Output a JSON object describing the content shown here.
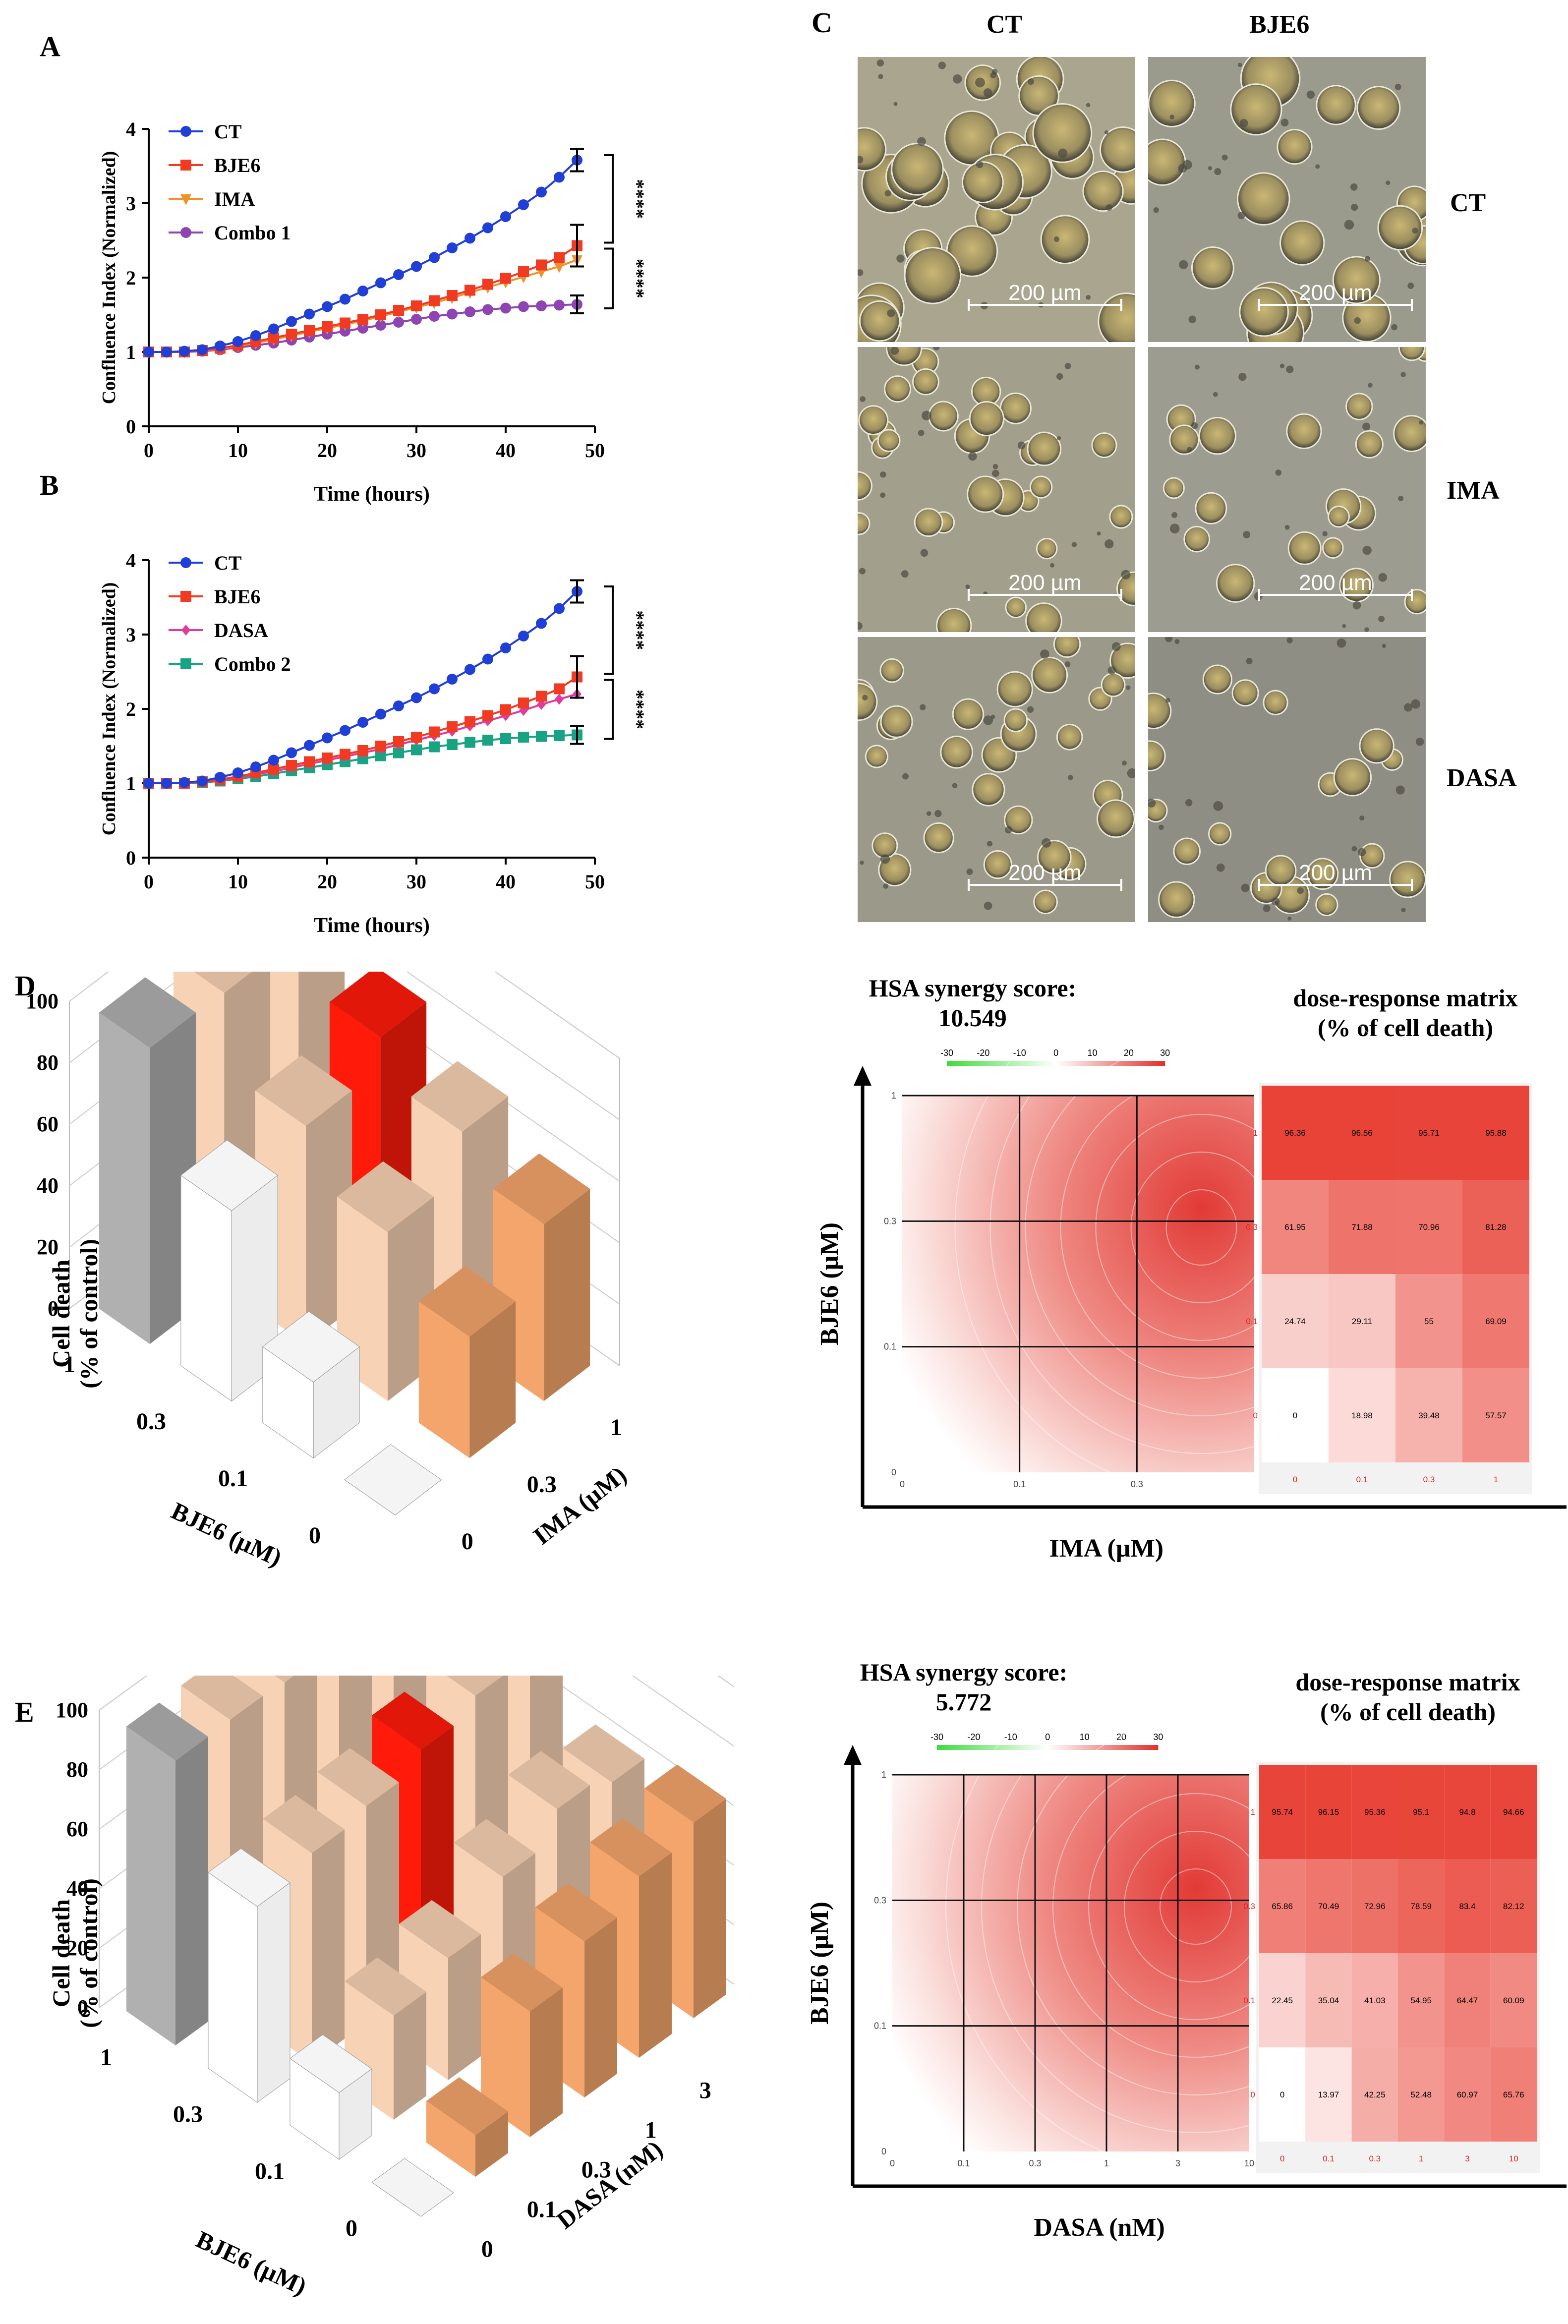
{
  "panels": {
    "A": "A",
    "B": "B",
    "C": "C",
    "D": "D",
    "E": "E"
  },
  "micro": {
    "col_labels": [
      "CT",
      "BJE6"
    ],
    "row_labels": [
      "CT",
      "IMA",
      "DASA"
    ],
    "scale_bar": "200 µm",
    "colors": [
      "#a9a58e",
      "#9a9b8c",
      "#a29f8c",
      "#9d9c90",
      "#9b9a8a",
      "#8f8e84"
    ]
  },
  "chart_data": [
    {
      "id": "A",
      "type": "line",
      "ylabel": "Confluence Index (Normalized)",
      "xlabel": "Time (hours)",
      "xlim": [
        0,
        50
      ],
      "ylim": [
        0,
        4
      ],
      "xticks": [
        0,
        10,
        20,
        30,
        40,
        50
      ],
      "yticks": [
        0,
        1,
        2,
        3,
        4
      ],
      "x": [
        0,
        2,
        4,
        6,
        8,
        10,
        12,
        14,
        16,
        18,
        20,
        22,
        24,
        26,
        28,
        30,
        32,
        34,
        36,
        38,
        40,
        42,
        44,
        46,
        48
      ],
      "series": [
        {
          "name": "CT",
          "color": "#1f3fd6",
          "marker": "circle",
          "endpoint_error": 0.15,
          "values": [
            1.0,
            1.0,
            1.01,
            1.03,
            1.08,
            1.14,
            1.22,
            1.31,
            1.41,
            1.51,
            1.61,
            1.71,
            1.82,
            1.93,
            2.04,
            2.15,
            2.27,
            2.4,
            2.53,
            2.67,
            2.82,
            2.98,
            3.15,
            3.35,
            3.58
          ]
        },
        {
          "name": "BJE6",
          "color": "#f03a22",
          "marker": "square",
          "endpoint_error": 0.28,
          "values": [
            1.0,
            1.0,
            1.0,
            1.02,
            1.05,
            1.09,
            1.14,
            1.19,
            1.24,
            1.29,
            1.34,
            1.39,
            1.44,
            1.5,
            1.56,
            1.62,
            1.69,
            1.76,
            1.83,
            1.91,
            1.99,
            2.08,
            2.17,
            2.27,
            2.43
          ]
        },
        {
          "name": "IMA",
          "color": "#f0922a",
          "marker": "triangle-down",
          "values": [
            1.0,
            1.0,
            1.0,
            1.02,
            1.04,
            1.08,
            1.12,
            1.17,
            1.22,
            1.27,
            1.32,
            1.37,
            1.42,
            1.48,
            1.54,
            1.6,
            1.66,
            1.73,
            1.8,
            1.87,
            1.94,
            2.01,
            2.08,
            2.15,
            2.24
          ]
        },
        {
          "name": "Combo 1",
          "color": "#8e44b2",
          "marker": "circle",
          "endpoint_error": 0.12,
          "values": [
            1.0,
            1.0,
            1.0,
            1.01,
            1.03,
            1.06,
            1.09,
            1.12,
            1.16,
            1.2,
            1.24,
            1.28,
            1.32,
            1.36,
            1.4,
            1.44,
            1.48,
            1.51,
            1.54,
            1.57,
            1.59,
            1.61,
            1.62,
            1.63,
            1.64
          ]
        }
      ],
      "significance": [
        "****",
        "****"
      ]
    },
    {
      "id": "B",
      "type": "line",
      "ylabel": "Confluence Index (Normalized)",
      "xlabel": "Time (hours)",
      "xlim": [
        0,
        50
      ],
      "ylim": [
        0,
        4
      ],
      "xticks": [
        0,
        10,
        20,
        30,
        40,
        50
      ],
      "yticks": [
        0,
        1,
        2,
        3,
        4
      ],
      "x": [
        0,
        2,
        4,
        6,
        8,
        10,
        12,
        14,
        16,
        18,
        20,
        22,
        24,
        26,
        28,
        30,
        32,
        34,
        36,
        38,
        40,
        42,
        44,
        46,
        48
      ],
      "series": [
        {
          "name": "CT",
          "color": "#1f3fd6",
          "marker": "circle",
          "endpoint_error": 0.15,
          "values": [
            1.0,
            1.0,
            1.01,
            1.03,
            1.08,
            1.14,
            1.22,
            1.31,
            1.41,
            1.51,
            1.61,
            1.71,
            1.82,
            1.93,
            2.04,
            2.15,
            2.27,
            2.4,
            2.53,
            2.67,
            2.82,
            2.98,
            3.15,
            3.35,
            3.58
          ]
        },
        {
          "name": "BJE6",
          "color": "#f03a22",
          "marker": "square",
          "endpoint_error": 0.28,
          "values": [
            1.0,
            1.0,
            1.0,
            1.02,
            1.05,
            1.09,
            1.14,
            1.19,
            1.24,
            1.29,
            1.34,
            1.39,
            1.44,
            1.5,
            1.56,
            1.62,
            1.69,
            1.76,
            1.83,
            1.91,
            1.99,
            2.08,
            2.17,
            2.27,
            2.43
          ]
        },
        {
          "name": "DASA",
          "color": "#e03a9c",
          "marker": "diamond",
          "values": [
            1.0,
            1.0,
            1.0,
            1.02,
            1.04,
            1.08,
            1.12,
            1.16,
            1.21,
            1.26,
            1.31,
            1.36,
            1.41,
            1.46,
            1.52,
            1.58,
            1.64,
            1.7,
            1.77,
            1.84,
            1.91,
            1.98,
            2.06,
            2.13,
            2.2
          ]
        },
        {
          "name": "Combo 2",
          "color": "#18a383",
          "marker": "square",
          "endpoint_error": 0.12,
          "values": [
            1.0,
            1.0,
            1.0,
            1.01,
            1.03,
            1.06,
            1.09,
            1.13,
            1.17,
            1.21,
            1.25,
            1.29,
            1.33,
            1.37,
            1.41,
            1.45,
            1.49,
            1.52,
            1.55,
            1.58,
            1.6,
            1.62,
            1.63,
            1.64,
            1.65
          ]
        }
      ],
      "significance": [
        "****",
        "****"
      ]
    },
    {
      "id": "D",
      "type": "bar3d",
      "zlabel": "Cell death",
      "zlabel2": "(% of control)",
      "xlabel": "BJE6 (µM)",
      "ylabel": "IMA (µM)",
      "zticks": [
        0,
        20,
        40,
        60,
        80,
        100
      ],
      "bje6_levels": [
        "0",
        "0.1",
        "0.3",
        "1"
      ],
      "drug_levels": [
        "0",
        "0.3",
        "1"
      ],
      "values": [
        [
          0,
          39.48,
          57.57
        ],
        [
          24.74,
          55,
          69.09
        ],
        [
          61.95,
          70.96,
          81.28
        ],
        [
          96.36,
          95.71,
          95.88
        ]
      ],
      "highlight": [
        2,
        2
      ]
    },
    {
      "id": "D-heatmap",
      "type": "heatmap",
      "title": "HSA synergy score:",
      "score": "10.549",
      "matrix_title": "dose-response matrix",
      "matrix_subtitle": "(% of cell death)",
      "xlabel": "IMA (µM)",
      "ylabel": "BJE6 (µM)",
      "colorbar_ticks": [
        "-30",
        "-20",
        "-10",
        "0",
        "10",
        "20",
        "30"
      ],
      "x_ticks": [
        "0",
        "0.1",
        "0.3",
        ""
      ],
      "y_ticks": [
        "0",
        "0.1",
        "0.3",
        "1"
      ],
      "matrix_cols": [
        "0",
        "0.1",
        "0.3",
        "1"
      ],
      "matrix_rows": [
        "1",
        "0.3",
        "0.1",
        "0"
      ],
      "matrix": [
        [
          "96.36",
          "96.56",
          "95.71",
          "95.88"
        ],
        [
          "61.95",
          "71.88",
          "70.96",
          "81.28"
        ],
        [
          "24.74",
          "29.11",
          "55",
          "69.09"
        ],
        [
          "0",
          "18.98",
          "39.48",
          "57.57"
        ]
      ]
    },
    {
      "id": "E",
      "type": "bar3d",
      "zlabel": "Cell death",
      "zlabel2": "(% of control)",
      "xlabel": "BJE6 (µM)",
      "ylabel": "DASA (nM)",
      "zticks": [
        0,
        20,
        40,
        60,
        80,
        100
      ],
      "bje6_levels": [
        "0",
        "0.1",
        "0.3",
        "1"
      ],
      "drug_levels": [
        "0",
        "0.1",
        "0.3",
        "1",
        "3",
        "10"
      ],
      "values": [
        [
          0,
          13.97,
          42.25,
          52.48,
          60.97,
          65.76
        ],
        [
          22.45,
          35.04,
          41.03,
          54.95,
          64.47,
          60.09
        ],
        [
          65.86,
          70.49,
          72.96,
          78.59,
          83.4,
          82.12
        ],
        [
          95.74,
          96.15,
          95.36,
          95.1,
          94.8,
          94.66
        ]
      ],
      "highlight": [
        2,
        3
      ]
    },
    {
      "id": "E-heatmap",
      "type": "heatmap",
      "title": "HSA synergy score:",
      "score": "5.772",
      "matrix_title": "dose-response matrix",
      "matrix_subtitle": "(% of cell death)",
      "xlabel": "DASA (nM)",
      "ylabel": "BJE6 (µM)",
      "colorbar_ticks": [
        "-30",
        "-20",
        "-10",
        "0",
        "10",
        "20",
        "30"
      ],
      "x_ticks": [
        "0",
        "0.1",
        "0.3",
        "1",
        "3",
        "10"
      ],
      "y_ticks": [
        "0",
        "0.1",
        "0.3",
        "1"
      ],
      "matrix_cols": [
        "0",
        "0.1",
        "0.3",
        "1",
        "3",
        "10"
      ],
      "matrix_rows": [
        "1",
        "0.3",
        "0.1",
        "0"
      ],
      "matrix": [
        [
          "95.74",
          "96.15",
          "95.36",
          "95.1",
          "94.8",
          "94.66"
        ],
        [
          "65.86",
          "70.49",
          "72.96",
          "78.59",
          "83.4",
          "82.12"
        ],
        [
          "22.45",
          "35.04",
          "41.03",
          "54.95",
          "64.47",
          "60.09"
        ],
        [
          "0",
          "13.97",
          "42.25",
          "52.48",
          "60.97",
          "65.76"
        ]
      ]
    }
  ]
}
